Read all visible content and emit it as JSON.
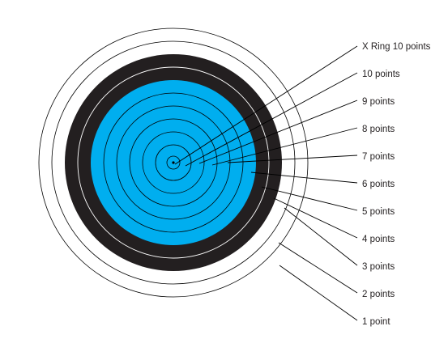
{
  "colors": {
    "background": "#ffffff",
    "white_zone": "#ffffff",
    "black_zone": "#231f20",
    "blue_zone": "#00aeef",
    "red_zone": "#ed1c24",
    "gold_zone": "#fff200",
    "ring_line": "#000000"
  },
  "labels": [
    {
      "id": "x-ring",
      "text": "X Ring 10 points"
    },
    {
      "id": "10",
      "text": "10 points"
    },
    {
      "id": "9",
      "text": "9 points"
    },
    {
      "id": "8",
      "text": "8 points"
    },
    {
      "id": "7",
      "text": "7 points"
    },
    {
      "id": "6",
      "text": "6 points"
    },
    {
      "id": "5",
      "text": "5 points"
    },
    {
      "id": "4",
      "text": "4 points"
    },
    {
      "id": "3",
      "text": "3 points"
    },
    {
      "id": "2",
      "text": "2 points"
    },
    {
      "id": "1",
      "text": "1 point"
    }
  ]
}
